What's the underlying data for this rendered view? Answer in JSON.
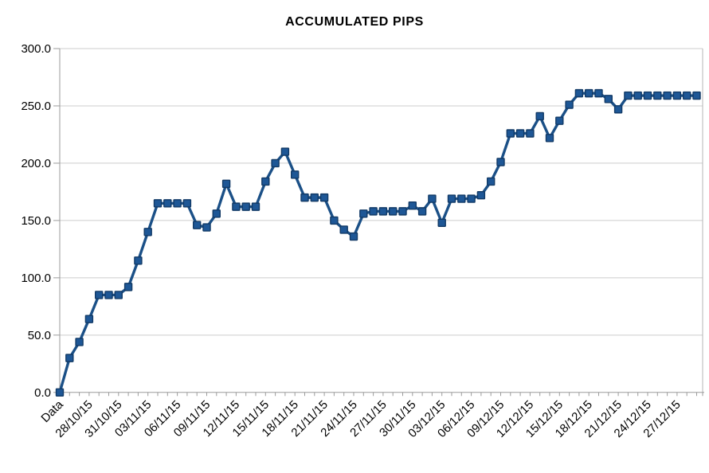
{
  "chart_data": {
    "type": "line",
    "title": "ACCUMULATED PIPS",
    "legend": "none",
    "grid": "horizontal-only",
    "ylim": [
      0,
      300
    ],
    "y_tick_step": 50,
    "y_tick_labels": [
      "0.0",
      "50.0",
      "100.0",
      "150.0",
      "200.0",
      "250.0",
      "300.0"
    ],
    "x_label_every_n_points": 3,
    "x_tick_labels": [
      "Data",
      "28/10/15",
      "31/10/15",
      "03/11/15",
      "06/11/15",
      "09/11/15",
      "12/11/15",
      "15/11/15",
      "18/11/15",
      "21/11/15",
      "24/11/15",
      "27/11/15",
      "30/11/15",
      "03/12/15",
      "06/12/15",
      "09/12/15",
      "12/12/15",
      "15/12/15",
      "18/12/15",
      "21/12/15",
      "24/12/15",
      "27/12/15"
    ],
    "x_labels_rotation_deg": 45,
    "values": [
      0,
      30,
      44,
      64,
      85,
      85,
      85,
      92,
      115,
      140,
      165,
      165,
      165,
      165,
      146,
      144,
      156,
      182,
      162,
      162,
      162,
      184,
      200,
      210,
      190,
      170,
      170,
      170,
      150,
      142,
      136,
      156,
      158,
      158,
      158,
      158,
      163,
      158,
      169,
      148,
      169,
      169,
      169,
      172,
      184,
      201,
      226,
      226,
      226,
      241,
      222,
      237,
      251,
      261,
      261,
      261,
      256,
      247,
      259,
      259,
      259,
      259,
      259,
      259,
      259,
      259
    ],
    "marker": "square",
    "colors": {
      "line": "#1b5087",
      "marker_fill": "#1e5796",
      "marker_border": "#123a66",
      "axis": "#9b9b9b",
      "wall_border": "#b4b4b4",
      "gridline": "#cccccc",
      "text": "#000000",
      "background": "#ffffff"
    }
  }
}
